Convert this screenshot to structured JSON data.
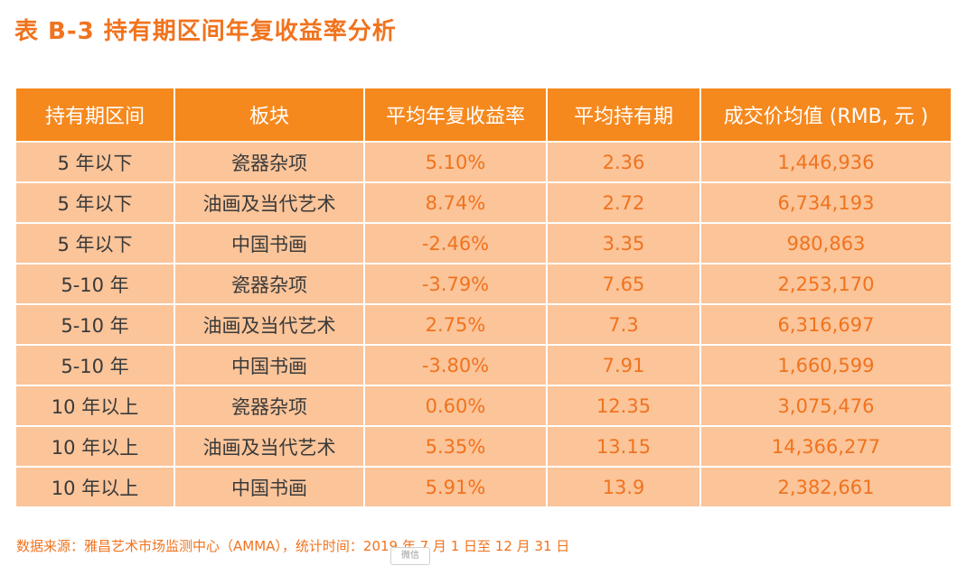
{
  "title": "表 B-3  持有期区间年复收益率分析",
  "table": {
    "headers": [
      "持有期区间",
      "板块",
      "平均年复收益率",
      "平均持有期",
      "成交价均值 (RMB, 元 )"
    ],
    "rows": [
      [
        "5 年以下",
        "瓷器杂项",
        "5.10%",
        "2.36",
        "1,446,936"
      ],
      [
        "5 年以下",
        "油画及当代艺术",
        "8.74%",
        "2.72",
        "6,734,193"
      ],
      [
        "5 年以下",
        "中国书画",
        "-2.46%",
        "3.35",
        "980,863"
      ],
      [
        "5-10 年",
        "瓷器杂项",
        "-3.79%",
        "7.65",
        "2,253,170"
      ],
      [
        "5-10 年",
        "油画及当代艺术",
        "2.75%",
        "7.3",
        "6,316,697"
      ],
      [
        "5-10 年",
        "中国书画",
        "-3.80%",
        "7.91",
        "1,660,599"
      ],
      [
        "10 年以上",
        "瓷器杂项",
        "0.60%",
        "12.35",
        "3,075,476"
      ],
      [
        "10 年以上",
        "油画及当代艺术",
        "5.35%",
        "13.15",
        "14,366,277"
      ],
      [
        "10 年以上",
        "中国书画",
        "5.91%",
        "13.9",
        "2,382,661"
      ]
    ]
  },
  "source": "数据来源：雅昌艺术市场监测中心（AMMA），统计时间：2019 年 7 月 1 日至 12 月 31 日",
  "watermark": "微信",
  "colors": {
    "accent": "#f0731e",
    "header_bg": "#f5891e",
    "row_bg": "#fbc499"
  }
}
